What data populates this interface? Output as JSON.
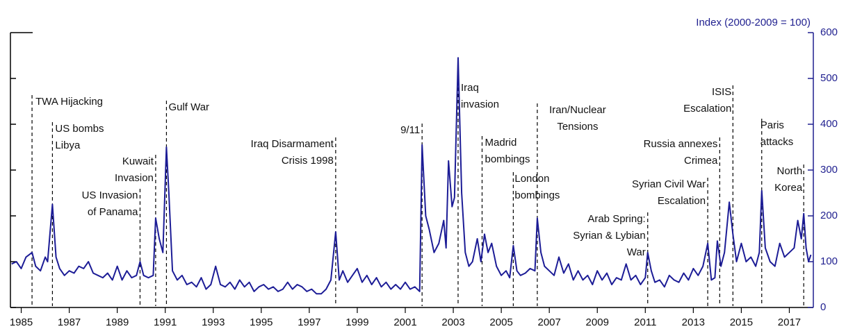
{
  "chart_data": {
    "type": "line",
    "y_axis_title": "Index (2000-2009 = 100)",
    "color": "#1c1c96",
    "xlim": [
      1984.55,
      2018.0
    ],
    "xticks": [
      1985,
      1987,
      1989,
      1991,
      1993,
      1995,
      1997,
      1999,
      2001,
      2003,
      2005,
      2007,
      2009,
      2011,
      2013,
      2015,
      2017
    ],
    "ylim": [
      0,
      600
    ],
    "yticks": [
      0,
      100,
      200,
      300,
      400,
      500,
      600
    ],
    "x": [
      1984.6,
      1984.8,
      1985.0,
      1985.2,
      1985.45,
      1985.6,
      1985.8,
      1986.0,
      1986.1,
      1986.3,
      1986.45,
      1986.6,
      1986.8,
      1987.0,
      1987.2,
      1987.4,
      1987.6,
      1987.8,
      1988.0,
      1988.2,
      1988.4,
      1988.6,
      1988.8,
      1989.0,
      1989.2,
      1989.4,
      1989.6,
      1989.8,
      1989.95,
      1990.1,
      1990.3,
      1990.5,
      1990.6,
      1990.75,
      1990.9,
      1991.05,
      1991.15,
      1991.3,
      1991.5,
      1991.7,
      1991.9,
      1992.1,
      1992.3,
      1992.5,
      1992.7,
      1992.9,
      1993.1,
      1993.3,
      1993.5,
      1993.7,
      1993.9,
      1994.1,
      1994.3,
      1994.5,
      1994.7,
      1994.9,
      1995.1,
      1995.3,
      1995.5,
      1995.7,
      1995.9,
      1996.1,
      1996.3,
      1996.5,
      1996.7,
      1996.9,
      1997.1,
      1997.3,
      1997.5,
      1997.7,
      1997.9,
      1998.1,
      1998.25,
      1998.4,
      1998.6,
      1998.8,
      1999.0,
      1999.2,
      1999.4,
      1999.6,
      1999.8,
      2000.0,
      2000.2,
      2000.4,
      2000.6,
      2000.8,
      2001.0,
      2001.2,
      2001.4,
      2001.6,
      2001.7,
      2001.85,
      2002.0,
      2002.2,
      2002.4,
      2002.6,
      2002.7,
      2002.8,
      2002.95,
      2003.05,
      2003.2,
      2003.35,
      2003.5,
      2003.65,
      2003.8,
      2004.0,
      2004.15,
      2004.3,
      2004.45,
      2004.6,
      2004.8,
      2005.0,
      2005.2,
      2005.35,
      2005.5,
      2005.65,
      2005.8,
      2006.0,
      2006.2,
      2006.4,
      2006.5,
      2006.65,
      2006.8,
      2007.0,
      2007.2,
      2007.4,
      2007.6,
      2007.8,
      2008.0,
      2008.2,
      2008.4,
      2008.6,
      2008.8,
      2009.0,
      2009.2,
      2009.4,
      2009.6,
      2009.8,
      2010.0,
      2010.2,
      2010.4,
      2010.6,
      2010.8,
      2011.0,
      2011.1,
      2011.25,
      2011.4,
      2011.6,
      2011.8,
      2012.0,
      2012.2,
      2012.4,
      2012.6,
      2012.8,
      2013.0,
      2013.2,
      2013.4,
      2013.6,
      2013.75,
      2013.9,
      2014.0,
      2014.15,
      2014.3,
      2014.5,
      2014.65,
      2014.8,
      2015.0,
      2015.2,
      2015.4,
      2015.6,
      2015.75,
      2015.85,
      2016.0,
      2016.2,
      2016.4,
      2016.6,
      2016.8,
      2017.0,
      2017.2,
      2017.35,
      2017.5,
      2017.6,
      2017.7,
      2017.8,
      2017.9
    ],
    "values": [
      95,
      100,
      85,
      110,
      120,
      90,
      80,
      110,
      100,
      225,
      110,
      85,
      70,
      80,
      75,
      90,
      85,
      100,
      75,
      70,
      65,
      75,
      60,
      90,
      60,
      80,
      65,
      70,
      100,
      70,
      65,
      70,
      195,
      150,
      120,
      350,
      250,
      80,
      60,
      70,
      50,
      55,
      45,
      65,
      40,
      50,
      90,
      50,
      45,
      55,
      40,
      60,
      45,
      55,
      35,
      45,
      50,
      40,
      45,
      35,
      40,
      55,
      40,
      50,
      45,
      35,
      40,
      30,
      30,
      40,
      60,
      165,
      60,
      80,
      55,
      70,
      85,
      55,
      70,
      50,
      65,
      45,
      55,
      40,
      50,
      40,
      55,
      40,
      45,
      35,
      355,
      200,
      170,
      120,
      140,
      190,
      130,
      320,
      220,
      240,
      545,
      250,
      120,
      90,
      100,
      150,
      100,
      160,
      120,
      140,
      90,
      70,
      80,
      65,
      135,
      80,
      70,
      75,
      85,
      80,
      195,
      120,
      90,
      80,
      70,
      110,
      75,
      95,
      60,
      80,
      60,
      70,
      50,
      80,
      60,
      75,
      50,
      65,
      60,
      95,
      60,
      70,
      50,
      65,
      120,
      80,
      55,
      60,
      45,
      70,
      60,
      55,
      75,
      60,
      85,
      70,
      90,
      140,
      60,
      65,
      145,
      90,
      120,
      230,
      160,
      100,
      140,
      100,
      110,
      90,
      120,
      255,
      130,
      100,
      90,
      140,
      110,
      120,
      130,
      190,
      150,
      205,
      130,
      100,
      115
    ],
    "annotations": [
      {
        "x": 1985.45,
        "lines": [
          "TWA Hijacking"
        ]
      },
      {
        "x": 1986.3,
        "lines": [
          "US bombs",
          "Libya"
        ]
      },
      {
        "x": 1989.95,
        "lines": [
          "US Invasion",
          "of Panama"
        ]
      },
      {
        "x": 1990.6,
        "lines": [
          "Kuwait",
          "Invasion"
        ]
      },
      {
        "x": 1991.05,
        "lines": [
          "Gulf War"
        ]
      },
      {
        "x": 1998.1,
        "lines": [
          "Iraq Disarmament",
          "Crisis 1998"
        ]
      },
      {
        "x": 2001.7,
        "lines": [
          "9/11"
        ]
      },
      {
        "x": 2003.2,
        "lines": [
          "Iraq",
          "invasion"
        ]
      },
      {
        "x": 2004.2,
        "lines": [
          "Madrid",
          "bombings"
        ]
      },
      {
        "x": 2005.5,
        "lines": [
          "London",
          "bombings"
        ]
      },
      {
        "x": 2006.5,
        "lines": [
          "Iran/Nuclear",
          "Tensions"
        ]
      },
      {
        "x": 2011.1,
        "lines": [
          "Arab Spring:",
          "Syrian & Lybian",
          "War"
        ]
      },
      {
        "x": 2013.6,
        "lines": [
          "Syrian Civil War",
          "Escalation"
        ]
      },
      {
        "x": 2014.1,
        "lines": [
          "Russia annexes",
          "Crimea"
        ]
      },
      {
        "x": 2014.65,
        "lines": [
          "ISIS",
          "Escalation"
        ]
      },
      {
        "x": 2015.85,
        "lines": [
          "Paris",
          "attacks"
        ]
      },
      {
        "x": 2017.6,
        "lines": [
          "North",
          "Korea"
        ]
      }
    ]
  }
}
